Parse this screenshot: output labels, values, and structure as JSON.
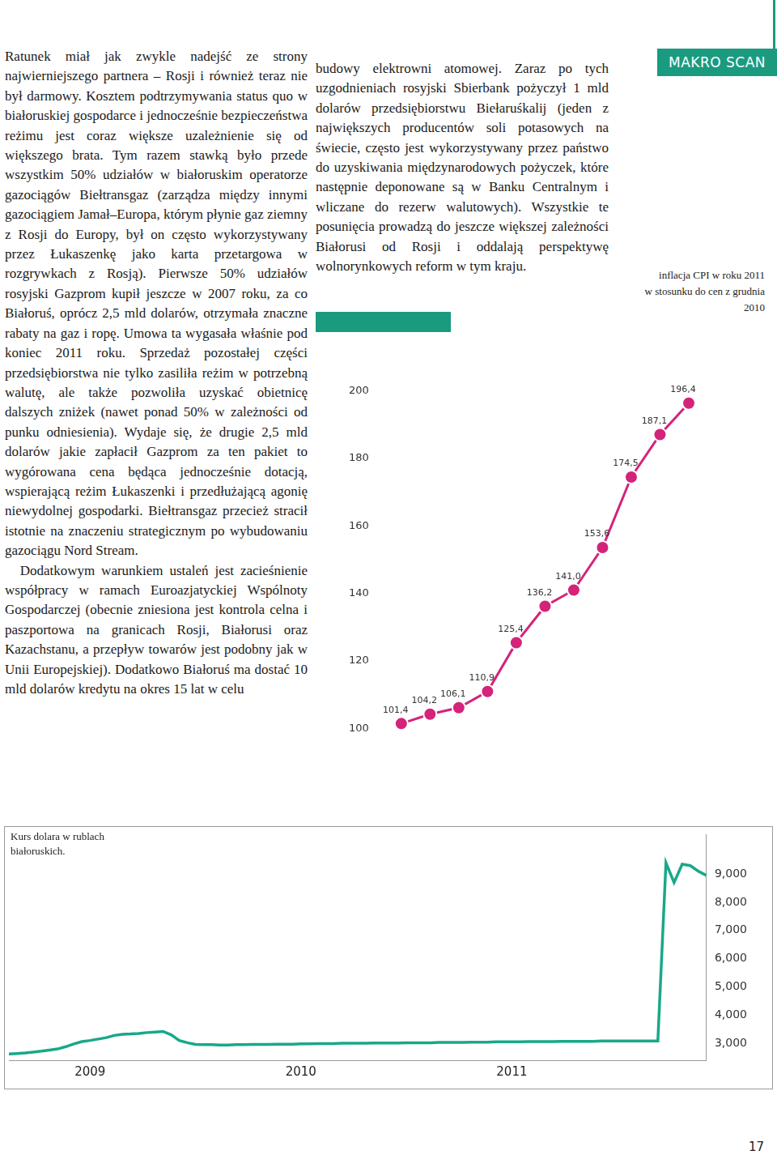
{
  "header": "MAKRO SCAN",
  "left_column": [
    "Ratunek miał jak zwykle nadejść ze strony najwierniejszego partnera – Rosji i również teraz nie był darmowy. Kosztem podtrzymywania status quo w białoruskiej gospodarce i jednocześnie bezpieczeństwa reżimu jest coraz większe uzależnienie się od większego brata. Tym razem stawką było przede wszystkim 50% udziałów w białoruskim operatorze gazociągów Biełtransgaz (zarządza między innymi gazociągiem Jamał–Europa, którym płynie gaz ziemny z Rosji do Europy, był on często wykorzystywany przez Łukaszenkę jako karta przetargowa w rozgrywkach z Rosją). Pierwsze 50% udziałów rosyjski Gazprom kupił jeszcze w 2007 roku, za co Białoruś, oprócz 2,5 mld dolarów, otrzymała znaczne rabaty na gaz i ropę. Umowa ta wygasała właśnie pod koniec 2011 roku. Sprzedaż pozostałej części przedsiębiorstwa nie tylko zasiliła reżim w potrzebną walutę, ale także pozwoliła uzyskać obietnicę dalszych zniżek (nawet ponad 50% w zależności od punku odniesienia). Wydaje się, że drugie 2,5 mld dolarów jakie zapłacił Gazprom za ten pakiet to wygórowana cena będąca jednocześnie dotacją, wspierającą reżim Łukaszenki i przedłużającą agonię niewydolnej gospodarki. Biełtransgaz przecież stracił istotnie na znaczeniu strategicznym po wybudowaniu gazociągu Nord Stream.",
    "Dodatkowym warunkiem ustaleń jest zacieśnienie współpracy w ramach Euroazjatyckiej Wspólnoty Gospodarczej (obecnie zniesiona jest kontrola celna i paszportowa na granicach Rosji, Białorusi oraz Kazachstanu, a przepływ towarów jest podobny jak w Unii Europejskiej). Dodatkowo Białoruś ma dostać 10 mld dolarów kredytu na okres 15 lat w celu"
  ],
  "right_column": [
    "budowy elektrowni atomowej. Zaraz po tych uzgodnieniach rosyjski Sbierbank pożyczył 1 mld dolarów przedsiębiorstwu Biełaruśkalij (jeden z największych producentów soli potasowych na świecie, często jest wykorzystywany przez państwo do uzyskiwania międzynarodowych pożyczek, które następnie deponowane są w Banku Centralnym i wliczane do rezerw walutowych). Wszystkie te posunięcia prowadzą do jeszcze większej zależności Białorusi od Rosji i oddalają perspektywę wolnorynkowych reform w tym kraju."
  ],
  "page_number": "17",
  "chart_data": [
    {
      "type": "line",
      "title": [
        "inflacja CPI w roku 2011",
        "w stosunku do cen z grudnia",
        "2010"
      ],
      "categories": [
        null,
        null,
        null,
        null,
        null,
        null,
        null,
        null,
        null,
        null,
        null
      ],
      "values": [
        101.4,
        104.2,
        106.1,
        110.9,
        125.4,
        136.2,
        141.0,
        153.6,
        174.5,
        187.1,
        196.4
      ],
      "value_labels": [
        "101,4",
        "104,2",
        "106,1",
        "110,9",
        "125,4",
        "136,2",
        "141,0",
        "153,6",
        "174,5",
        "187,1",
        "196,4"
      ],
      "color": "#d4237a",
      "marker": "circle",
      "ylim": [
        100,
        200
      ],
      "yticks": [
        100,
        120,
        140,
        160,
        180,
        200
      ],
      "grid": false,
      "data_labels": true,
      "tick_labels": "y"
    },
    {
      "type": "line",
      "title": "Kurs dolara w rublach białoruskich.",
      "categories": [
        null,
        null,
        null,
        null,
        null,
        null,
        null,
        null,
        null,
        null,
        "2009",
        null,
        null,
        null,
        null,
        null,
        null,
        null,
        null,
        null,
        null,
        null,
        null,
        null,
        null,
        null,
        null,
        null,
        null,
        null,
        null,
        null,
        null,
        null,
        null,
        null,
        "2010",
        null,
        null,
        null,
        null,
        null,
        null,
        null,
        null,
        null,
        null,
        null,
        null,
        null,
        null,
        null,
        null,
        null,
        null,
        null,
        null,
        null,
        null,
        null,
        null,
        null,
        "2011",
        null,
        null,
        null,
        null,
        null,
        null,
        null,
        null,
        null,
        null,
        null,
        null,
        null,
        null,
        null,
        null,
        null,
        null,
        null,
        null,
        null,
        null,
        null,
        null
      ],
      "values": [
        2620,
        2640,
        2660,
        2690,
        2720,
        2760,
        2800,
        2880,
        2980,
        3060,
        3100,
        3150,
        3200,
        3280,
        3320,
        3330,
        3350,
        3380,
        3400,
        3420,
        3300,
        3100,
        3020,
        2960,
        2950,
        2950,
        2940,
        2940,
        2950,
        2950,
        2960,
        2960,
        2960,
        2970,
        2970,
        2970,
        2980,
        2980,
        2990,
        2990,
        2990,
        3000,
        3000,
        3000,
        3000,
        3010,
        3010,
        3010,
        3010,
        3020,
        3020,
        3020,
        3020,
        3030,
        3030,
        3030,
        3030,
        3040,
        3040,
        3040,
        3050,
        3050,
        3050,
        3050,
        3060,
        3060,
        3060,
        3060,
        3070,
        3070,
        3070,
        3070,
        3070,
        3080,
        3080,
        3080,
        3080,
        3080,
        3080,
        3080,
        3080,
        9400,
        8700,
        9350,
        9300,
        9100,
        8950
      ],
      "color": "#19a889",
      "marker": "none",
      "ylim": [
        2400,
        10400
      ],
      "yticks": [
        {
          "value": 3000,
          "label": "3,000"
        },
        {
          "value": 4000,
          "label": "4,000"
        },
        {
          "value": 5000,
          "label": "5,000"
        },
        {
          "value": 6000,
          "label": "6,000"
        },
        {
          "value": 7000,
          "label": "7,000"
        },
        {
          "value": 8000,
          "label": "8,000"
        },
        {
          "value": 9000,
          "label": "9,000"
        }
      ],
      "grid": false
    }
  ]
}
